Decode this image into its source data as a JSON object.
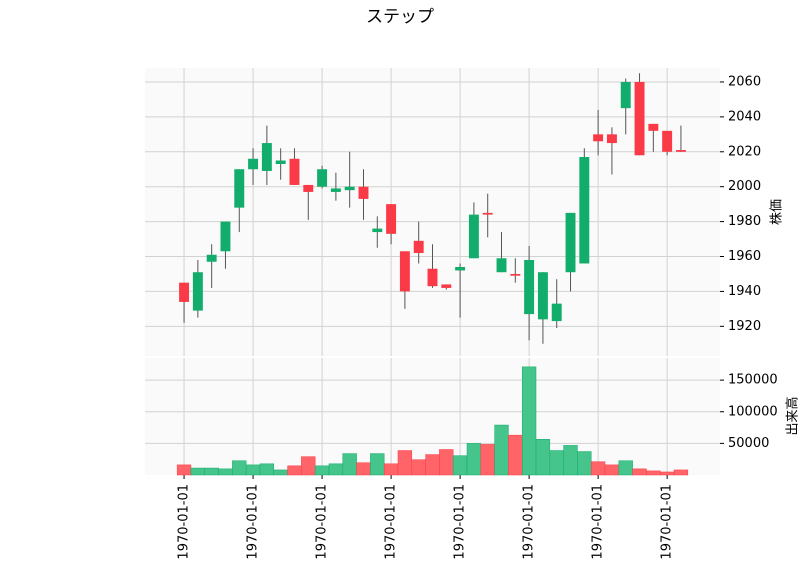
{
  "chart_data": {
    "type": "candlestick",
    "title": "ステップ",
    "categories": [
      "1970-01-01",
      null,
      null,
      null,
      null,
      "1970-01-01",
      null,
      null,
      null,
      null,
      "1970-01-01",
      null,
      null,
      null,
      null,
      "1970-01-01",
      null,
      null,
      null,
      null,
      "1970-01-01",
      null,
      null,
      null,
      null,
      "1970-01-01",
      null,
      null,
      null,
      null,
      "1970-01-01",
      null,
      null,
      null,
      null,
      "1970-01-01",
      null
    ],
    "open": [
      1945,
      1929,
      1957,
      1963,
      1988,
      2010,
      2009,
      2013,
      2016,
      2001,
      2000,
      1997,
      1998,
      2000,
      1974,
      1990,
      1963,
      1969,
      1953,
      1944,
      1952,
      1959,
      1985,
      1951,
      1950,
      1927,
      1924,
      1923,
      1951,
      1956,
      2030,
      2030,
      2045,
      2060,
      2036,
      2032,
      2021
    ],
    "high": [
      1945,
      1958,
      1967,
      1980,
      2010,
      2022,
      2035,
      2022,
      2022,
      2001,
      2012,
      2008,
      2020,
      2010,
      1983,
      1990,
      1963,
      1980,
      1967,
      1944,
      1956,
      1991,
      1996,
      1974,
      1959,
      1966,
      1951,
      1947,
      1985,
      2022,
      2044,
      2034,
      2062,
      2065,
      2036,
      2032,
      2035
    ],
    "low": [
      1922,
      1925,
      1942,
      1953,
      1974,
      2001,
      2001,
      2004,
      2001,
      1981,
      1999,
      1992,
      1988,
      1981,
      1965,
      1967,
      1930,
      1956,
      1942,
      1941,
      1925,
      1959,
      1971,
      1951,
      1945,
      1912,
      1910,
      1919,
      1940,
      1956,
      2018,
      2007,
      2030,
      2018,
      2020,
      2018,
      2020
    ],
    "close": [
      1934,
      1951,
      1961,
      1980,
      2010,
      2016,
      2025,
      2015,
      2001,
      1997,
      2010,
      1999,
      2000,
      1993,
      1976,
      1973,
      1940,
      1962,
      1943,
      1942,
      1954,
      1984,
      1984,
      1959,
      1949,
      1958,
      1951,
      1933,
      1985,
      2017,
      2026,
      2025,
      2060,
      2018,
      2032,
      2020,
      2020
    ],
    "volume": [
      16000,
      11000,
      11000,
      9700,
      22600,
      16000,
      17700,
      8000,
      14500,
      29000,
      14500,
      17700,
      33900,
      19400,
      33900,
      17700,
      38700,
      24200,
      32300,
      40300,
      30600,
      50000,
      48400,
      79000,
      63000,
      171000,
      56500,
      38700,
      46800,
      37100,
      21000,
      16000,
      22600,
      9700,
      6500,
      4800,
      8000
    ],
    "up_color": "#12ad6c",
    "down_color": "#fb3a47",
    "volume_up_color": "#45c48b",
    "volume_down_color": "#ff6468",
    "ylabel": "株価",
    "ylim": [
      1903,
      2068
    ],
    "yticks": [
      1920,
      1940,
      1960,
      1980,
      2000,
      2020,
      2040,
      2060
    ],
    "volume_label": "出来高",
    "volume_ylim": [
      0,
      185000
    ],
    "volume_yticks": [
      50000,
      100000,
      150000
    ],
    "grid": true
  }
}
